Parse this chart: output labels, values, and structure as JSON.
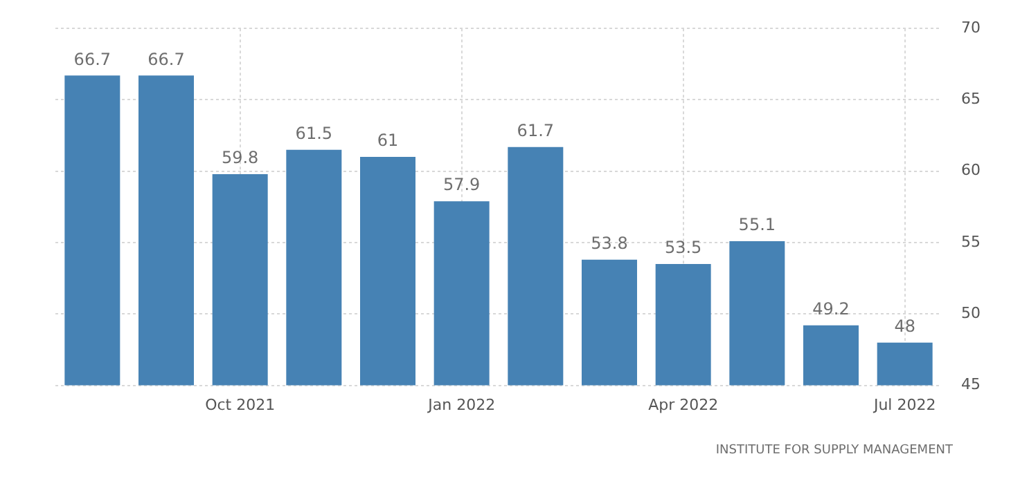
{
  "chart_data": {
    "type": "bar",
    "categories": [
      null,
      null,
      "Oct 2021",
      null,
      null,
      "Jan 2022",
      null,
      null,
      "Apr 2022",
      null,
      null,
      "Jul 2022"
    ],
    "values": [
      66.7,
      66.7,
      59.8,
      61.5,
      61,
      57.9,
      61.7,
      53.8,
      53.5,
      55.1,
      49.2,
      48
    ],
    "color": "#4682b4",
    "ylim": [
      45,
      70
    ],
    "yticks": [
      45,
      50,
      55,
      60,
      65,
      70
    ],
    "grid": true,
    "data_labels": true,
    "annotations": [
      "INSTITUTE FOR SUPPLY MANAGEMENT"
    ]
  }
}
